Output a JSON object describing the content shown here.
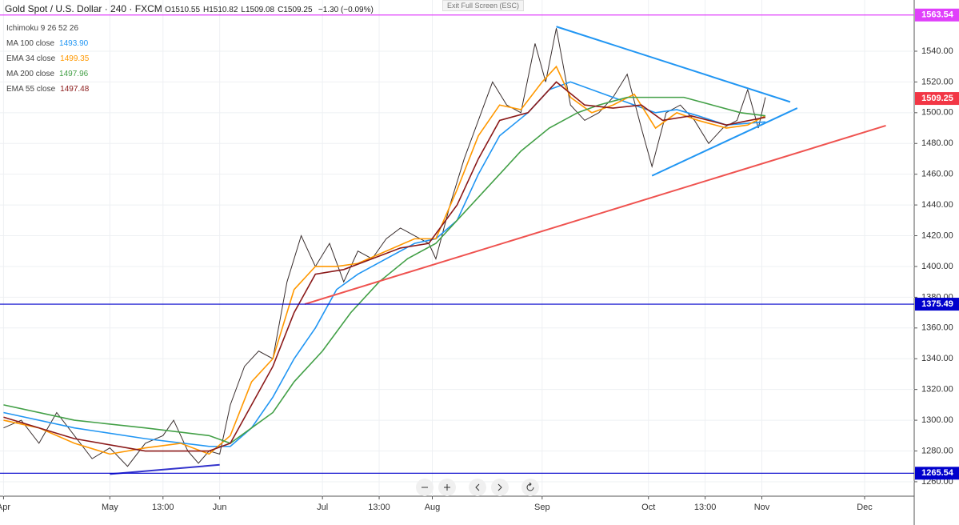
{
  "header": {
    "title": "Gold Spot / U.S. Dollar · 240 · FXCM",
    "ohlc": [
      {
        "label": "O",
        "value": "1510.55"
      },
      {
        "label": "H",
        "value": "1510.82"
      },
      {
        "label": "L",
        "value": "1509.08"
      },
      {
        "label": "C",
        "value": "1509.25"
      }
    ],
    "change": "−1.30 (−0.09%)",
    "indicator": "Ichimoku 9 26 52 26",
    "exit_button": "Exit Full Screen (ESC)"
  },
  "chart_data": {
    "type": "line",
    "xlim": [
      -1,
      257
    ],
    "xticks": [
      {
        "value": 0,
        "label": "Apr"
      },
      {
        "value": 30,
        "label": "May"
      },
      {
        "value": 45,
        "label": "13:00"
      },
      {
        "value": 61,
        "label": "Jun"
      },
      {
        "value": 90,
        "label": "Jul"
      },
      {
        "value": 106,
        "label": "13:00"
      },
      {
        "value": 121,
        "label": "Aug"
      },
      {
        "value": 152,
        "label": "Sep"
      },
      {
        "value": 182,
        "label": "Oct"
      },
      {
        "value": 198,
        "label": "13:00"
      },
      {
        "value": 214,
        "label": "Nov"
      },
      {
        "value": 243,
        "label": "Dec"
      }
    ],
    "ylim": [
      1250.6,
      1573.3
    ],
    "yticks": [
      {
        "value": 1260,
        "label": "1260.00"
      },
      {
        "value": 1280,
        "label": "1280.00"
      },
      {
        "value": 1300,
        "label": "1300.00"
      },
      {
        "value": 1320,
        "label": "1320.00"
      },
      {
        "value": 1340,
        "label": "1340.00"
      },
      {
        "value": 1360,
        "label": "1360.00"
      },
      {
        "value": 1380,
        "label": "1380.00"
      },
      {
        "value": 1400,
        "label": "1400.00"
      },
      {
        "value": 1420,
        "label": "1420.00"
      },
      {
        "value": 1440,
        "label": "1440.00"
      },
      {
        "value": 1460,
        "label": "1460.00"
      },
      {
        "value": 1480,
        "label": "1480.00"
      },
      {
        "value": 1500,
        "label": "1500.00"
      },
      {
        "value": 1520,
        "label": "1520.00"
      },
      {
        "value": 1540,
        "label": "1540.00"
      }
    ],
    "grid": true,
    "series": [
      {
        "color": "#3a2f2f",
        "x": [
          0,
          5,
          10,
          15,
          20,
          25,
          30,
          35,
          40,
          45,
          48,
          52,
          55,
          58,
          61,
          64,
          68,
          72,
          76,
          80,
          84,
          88,
          92,
          96,
          100,
          104,
          108,
          112,
          116,
          120,
          122,
          126,
          130,
          134,
          138,
          142,
          146,
          150,
          153,
          156,
          160,
          164,
          168,
          172,
          176,
          180,
          183,
          187,
          191,
          195,
          199,
          203,
          207,
          210,
          213,
          215
        ],
        "values": [
          1295,
          1300,
          1285,
          1305,
          1290,
          1275,
          1282,
          1270,
          1285,
          1290,
          1300,
          1280,
          1272,
          1280,
          1278,
          1310,
          1335,
          1345,
          1340,
          1390,
          1420,
          1400,
          1415,
          1390,
          1410,
          1405,
          1418,
          1425,
          1420,
          1415,
          1405,
          1440,
          1470,
          1495,
          1520,
          1505,
          1500,
          1545,
          1520,
          1555,
          1505,
          1495,
          1500,
          1510,
          1525,
          1490,
          1465,
          1500,
          1505,
          1495,
          1480,
          1490,
          1495,
          1515,
          1490,
          1510
        ]
      },
      {
        "name": "MA 100 close",
        "legend_value": "1493.90",
        "color": "#2196f3",
        "x": [
          0,
          20,
          40,
          58,
          64,
          70,
          76,
          82,
          88,
          94,
          100,
          108,
          116,
          122,
          128,
          134,
          140,
          148,
          154,
          160,
          166,
          172,
          178,
          184,
          190,
          196,
          204,
          215
        ],
        "values": [
          1305,
          1295,
          1288,
          1283,
          1283,
          1295,
          1315,
          1340,
          1360,
          1385,
          1395,
          1405,
          1415,
          1418,
          1430,
          1460,
          1485,
          1500,
          1515,
          1520,
          1515,
          1510,
          1505,
          1500,
          1502,
          1498,
          1492,
          1494
        ]
      },
      {
        "name": "EMA 34 close",
        "legend_value": "1499.35",
        "color": "#ff9800",
        "x": [
          0,
          10,
          20,
          30,
          40,
          50,
          58,
          64,
          70,
          76,
          82,
          88,
          94,
          100,
          108,
          116,
          122,
          128,
          134,
          140,
          146,
          152,
          156,
          160,
          166,
          172,
          178,
          184,
          190,
          196,
          204,
          210,
          215
        ],
        "values": [
          1300,
          1295,
          1285,
          1278,
          1282,
          1285,
          1278,
          1290,
          1325,
          1340,
          1385,
          1400,
          1400,
          1402,
          1410,
          1418,
          1418,
          1450,
          1485,
          1505,
          1502,
          1520,
          1530,
          1510,
          1500,
          1505,
          1512,
          1490,
          1500,
          1495,
          1490,
          1492,
          1498
        ]
      },
      {
        "name": "MA 200 close",
        "legend_value": "1497.96",
        "color": "#43a047",
        "x": [
          0,
          20,
          40,
          58,
          64,
          70,
          76,
          82,
          90,
          98,
          106,
          114,
          122,
          130,
          138,
          146,
          154,
          162,
          168,
          176,
          184,
          192,
          200,
          208,
          215
        ],
        "values": [
          1310,
          1300,
          1295,
          1290,
          1285,
          1295,
          1305,
          1325,
          1345,
          1370,
          1390,
          1405,
          1415,
          1435,
          1455,
          1475,
          1490,
          1500,
          1505,
          1510,
          1510,
          1510,
          1505,
          1500,
          1498
        ]
      },
      {
        "name": "EMA 55 close",
        "legend_value": "1497.48",
        "color": "#8b1a1a",
        "x": [
          0,
          20,
          40,
          58,
          64,
          70,
          76,
          82,
          88,
          96,
          104,
          112,
          120,
          128,
          134,
          140,
          148,
          156,
          164,
          172,
          180,
          186,
          194,
          204,
          215
        ],
        "values": [
          1302,
          1288,
          1280,
          1280,
          1285,
          1310,
          1335,
          1370,
          1395,
          1398,
          1405,
          1412,
          1415,
          1440,
          1470,
          1495,
          1500,
          1520,
          1505,
          1503,
          1505,
          1495,
          1498,
          1492,
          1497
        ]
      }
    ],
    "trendlines": [
      {
        "color": "#2196f3",
        "x": [
          156,
          222
        ],
        "values": [
          1556,
          1507
        ]
      },
      {
        "color": "#2196f3",
        "x": [
          183,
          224
        ],
        "values": [
          1459,
          1503
        ]
      },
      {
        "color": "#ef5350",
        "x": [
          85,
          249
        ],
        "values": [
          1375.5,
          1491.6
        ]
      },
      {
        "color": "#3333cc",
        "x": [
          30,
          61
        ],
        "values": [
          1265,
          1271
        ]
      }
    ],
    "levels": [
      {
        "value": 1563.54,
        "label": "1563.54",
        "color": "#e040fb",
        "line": true
      },
      {
        "value": 1509.25,
        "label": "1509.25",
        "color": "#f23645",
        "line": false
      },
      {
        "value": 1375.49,
        "label": "1375.49",
        "color": "#0000cc",
        "line": true
      },
      {
        "value": 1265.54,
        "label": "1265.54",
        "color": "#0000cc",
        "line": true
      }
    ]
  }
}
